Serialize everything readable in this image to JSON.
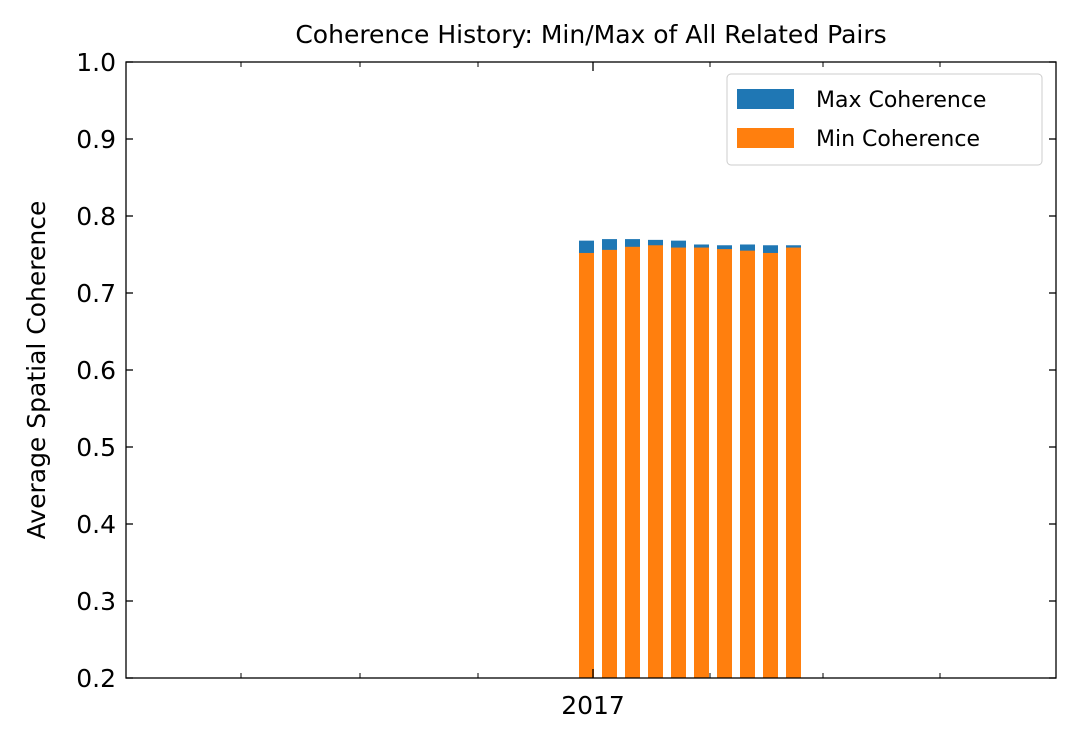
{
  "chart_data": {
    "type": "bar",
    "title": "Coherence History: Min/Max of All Related Pairs",
    "xlabel": "",
    "ylabel": "Average Spatial Coherence",
    "ylim": [
      0.2,
      1.0
    ],
    "yticks": [
      "0.2",
      "0.3",
      "0.4",
      "0.5",
      "0.6",
      "0.7",
      "0.8",
      "0.9",
      "1.0"
    ],
    "xtick_labels": [
      "2017"
    ],
    "bar_style": "overlaid",
    "legend_position": "upper right",
    "grid": false,
    "colors": {
      "max": "#1f77b4",
      "min": "#ff7f0e"
    },
    "series": [
      {
        "name": "Max Coherence",
        "values": [
          0.768,
          0.77,
          0.77,
          0.769,
          0.768,
          0.763,
          0.762,
          0.763,
          0.762,
          0.762
        ]
      },
      {
        "name": "Min Coherence",
        "values": [
          0.752,
          0.756,
          0.76,
          0.762,
          0.759,
          0.759,
          0.757,
          0.755,
          0.752,
          0.759
        ]
      }
    ]
  }
}
